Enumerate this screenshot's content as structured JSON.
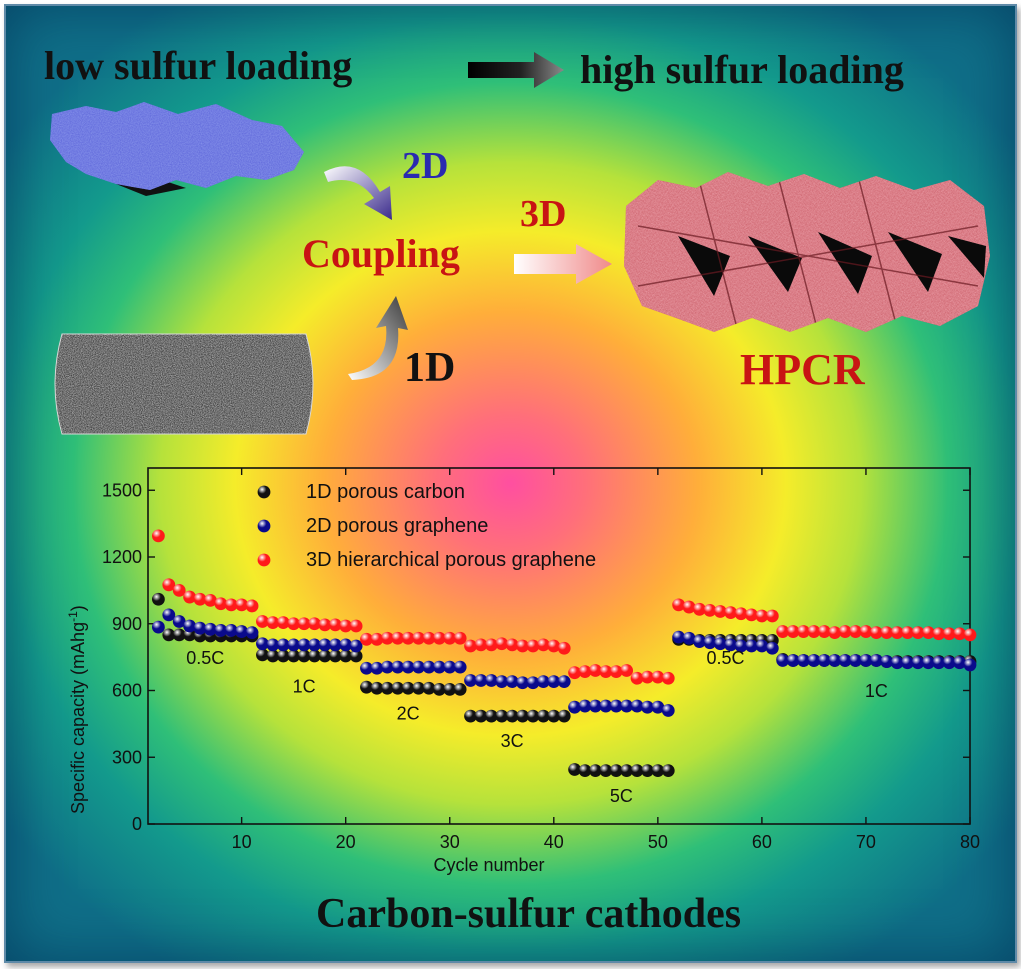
{
  "header": {
    "left": "low sulfur loading",
    "right": "high sulfur loading"
  },
  "scheme": {
    "label_2d": "2D",
    "label_1d": "1D",
    "label_3d": "3D",
    "coupling": "Coupling",
    "product": "HPCR"
  },
  "footer": {
    "title": "Carbon-sulfur cathodes"
  },
  "colors": {
    "series_1d": "#111111",
    "series_2d": "#0a0a8c",
    "series_3d": "#ff1a1a",
    "label_2d": "#2a2ab0",
    "label_red": "#c81414"
  },
  "chart_data": {
    "type": "scatter",
    "xlabel": "Cycle number",
    "ylabel": "Specific capacity (mAhg",
    "ylabel_sup": "-1",
    "ylabel_close": ")",
    "xlim": [
      1,
      80
    ],
    "ylim": [
      0,
      1600
    ],
    "xticks": [
      10,
      20,
      30,
      40,
      50,
      60,
      70,
      80
    ],
    "yticks": [
      0,
      300,
      600,
      900,
      1200,
      1500
    ],
    "legend": {
      "position": "top-left",
      "entries": [
        "1D porous carbon",
        "2D porous graphene",
        "3D hierarchical porous graphene"
      ]
    },
    "annotations": [
      {
        "text": "0.5C",
        "x": 6.5,
        "y": 720
      },
      {
        "text": "1C",
        "x": 16,
        "y": 590
      },
      {
        "text": "2C",
        "x": 26,
        "y": 470
      },
      {
        "text": "3C",
        "x": 36,
        "y": 345
      },
      {
        "text": "5C",
        "x": 46.5,
        "y": 100
      },
      {
        "text": "0.5C",
        "x": 56.5,
        "y": 720
      },
      {
        "text": "1C",
        "x": 71,
        "y": 570
      }
    ],
    "series": [
      {
        "name": "1D porous carbon",
        "x": [
          2,
          3,
          4,
          5,
          6,
          7,
          8,
          9,
          10,
          11,
          12,
          13,
          14,
          15,
          16,
          17,
          18,
          19,
          20,
          21,
          22,
          23,
          24,
          25,
          26,
          27,
          28,
          29,
          30,
          31,
          32,
          33,
          34,
          35,
          36,
          37,
          38,
          39,
          40,
          41,
          42,
          43,
          44,
          45,
          46,
          47,
          48,
          49,
          50,
          51,
          52,
          53,
          54,
          55,
          56,
          57,
          58,
          59,
          60,
          61,
          62,
          63,
          64,
          65,
          66,
          67,
          68,
          69,
          70,
          71,
          72,
          73,
          74,
          75,
          76,
          77,
          78,
          79,
          80
        ],
        "values": [
          1010,
          850,
          850,
          850,
          845,
          845,
          845,
          845,
          845,
          845,
          760,
          755,
          755,
          755,
          755,
          755,
          755,
          755,
          755,
          755,
          615,
          610,
          610,
          610,
          610,
          610,
          610,
          605,
          605,
          605,
          485,
          485,
          485,
          485,
          485,
          485,
          485,
          485,
          485,
          485,
          245,
          240,
          240,
          240,
          240,
          240,
          240,
          240,
          240,
          240,
          830,
          830,
          825,
          825,
          825,
          825,
          825,
          825,
          825,
          825,
          740,
          735,
          735,
          735,
          735,
          735,
          735,
          735,
          735,
          735,
          730,
          730,
          730,
          730,
          730,
          730,
          730,
          730,
          730
        ]
      },
      {
        "name": "2D porous graphene",
        "x": [
          2,
          3,
          4,
          5,
          6,
          7,
          8,
          9,
          10,
          11,
          12,
          13,
          14,
          15,
          16,
          17,
          18,
          19,
          20,
          21,
          22,
          23,
          24,
          25,
          26,
          27,
          28,
          29,
          30,
          31,
          32,
          33,
          34,
          35,
          36,
          37,
          38,
          39,
          40,
          41,
          42,
          43,
          44,
          45,
          46,
          47,
          48,
          49,
          50,
          51,
          52,
          53,
          54,
          55,
          56,
          57,
          58,
          59,
          60,
          61,
          62,
          63,
          64,
          65,
          66,
          67,
          68,
          69,
          70,
          71,
          72,
          73,
          74,
          75,
          76,
          77,
          78,
          79,
          80
        ],
        "values": [
          885,
          940,
          910,
          890,
          880,
          875,
          870,
          870,
          865,
          860,
          810,
          805,
          805,
          805,
          805,
          805,
          805,
          805,
          805,
          800,
          700,
          700,
          705,
          705,
          705,
          705,
          705,
          705,
          705,
          705,
          645,
          645,
          645,
          640,
          640,
          635,
          635,
          640,
          640,
          640,
          525,
          530,
          530,
          530,
          530,
          530,
          530,
          525,
          525,
          510,
          840,
          835,
          820,
          815,
          810,
          805,
          800,
          800,
          800,
          790,
          735,
          735,
          735,
          735,
          735,
          735,
          735,
          735,
          735,
          735,
          730,
          725,
          725,
          725,
          725,
          725,
          725,
          725,
          715
        ]
      },
      {
        "name": "3D hierarchical porous graphene",
        "x": [
          2,
          3,
          4,
          5,
          6,
          7,
          8,
          9,
          10,
          11,
          12,
          13,
          14,
          15,
          16,
          17,
          18,
          19,
          20,
          21,
          22,
          23,
          24,
          25,
          26,
          27,
          28,
          29,
          30,
          31,
          32,
          33,
          34,
          35,
          36,
          37,
          38,
          39,
          40,
          41,
          42,
          43,
          44,
          45,
          46,
          47,
          48,
          49,
          50,
          51,
          52,
          53,
          54,
          55,
          56,
          57,
          58,
          59,
          60,
          61,
          62,
          63,
          64,
          65,
          66,
          67,
          68,
          69,
          70,
          71,
          72,
          73,
          74,
          75,
          76,
          77,
          78,
          79,
          80
        ],
        "values": [
          1295,
          1075,
          1050,
          1020,
          1010,
          1005,
          990,
          985,
          985,
          980,
          910,
          905,
          905,
          900,
          900,
          900,
          895,
          895,
          890,
          890,
          830,
          830,
          835,
          835,
          835,
          835,
          835,
          835,
          835,
          835,
          800,
          805,
          805,
          810,
          805,
          800,
          800,
          805,
          800,
          790,
          680,
          685,
          690,
          685,
          685,
          690,
          655,
          660,
          660,
          655,
          985,
          975,
          965,
          960,
          955,
          950,
          945,
          940,
          935,
          935,
          865,
          865,
          865,
          865,
          865,
          860,
          865,
          865,
          865,
          860,
          860,
          860,
          860,
          860,
          860,
          855,
          855,
          855,
          850
        ]
      }
    ]
  }
}
